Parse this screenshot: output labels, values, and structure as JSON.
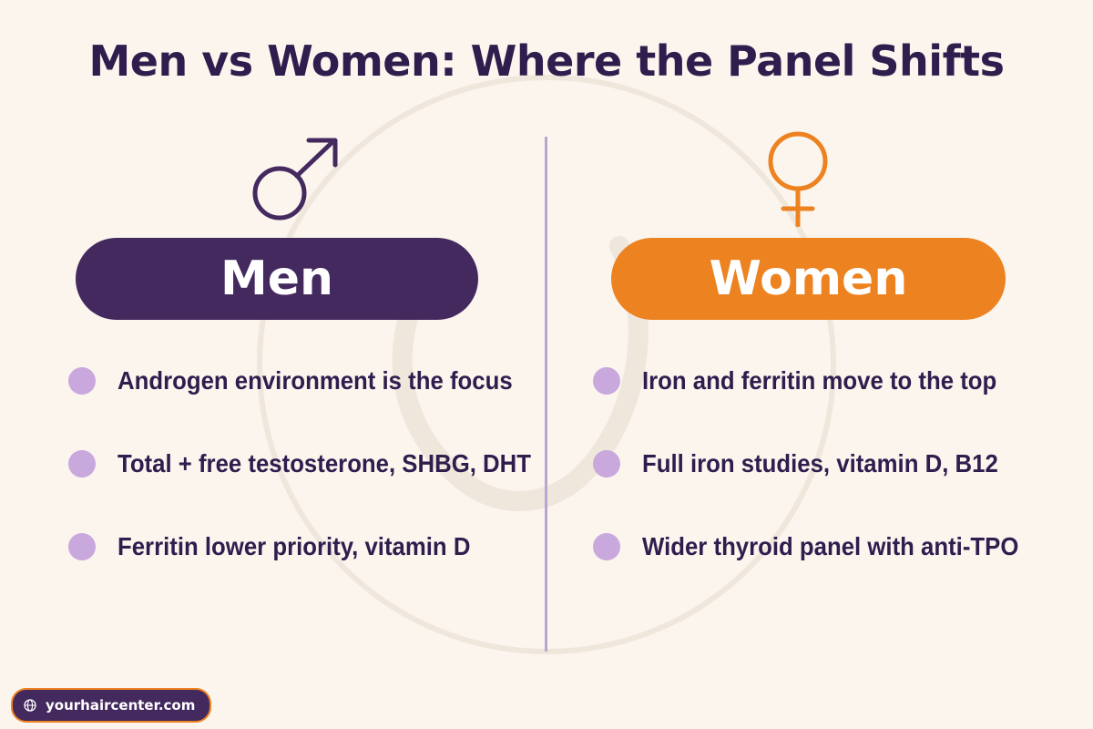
{
  "title": "Men vs Women: Where the Panel Shifts",
  "colors": {
    "men_accent": "#44295f",
    "women_accent": "#ed8221",
    "bullet": "#c8a8dd",
    "background": "#fbf5ee",
    "divider": "#b9a5d1"
  },
  "men": {
    "symbol_icon": "male-symbol-icon",
    "label": "Men",
    "items": [
      "Androgen environment is the focus",
      "Total + free testosterone, SHBG, DHT",
      "Ferritin lower priority, vitamin D"
    ]
  },
  "women": {
    "symbol_icon": "female-symbol-icon",
    "label": "Women",
    "items": [
      "Iron and ferritin move to the top",
      "Full iron studies, vitamin D, B12",
      "Wider thyroid panel with anti-TPO"
    ]
  },
  "footer": {
    "icon": "globe-icon",
    "site": "yourhaircenter.com"
  }
}
